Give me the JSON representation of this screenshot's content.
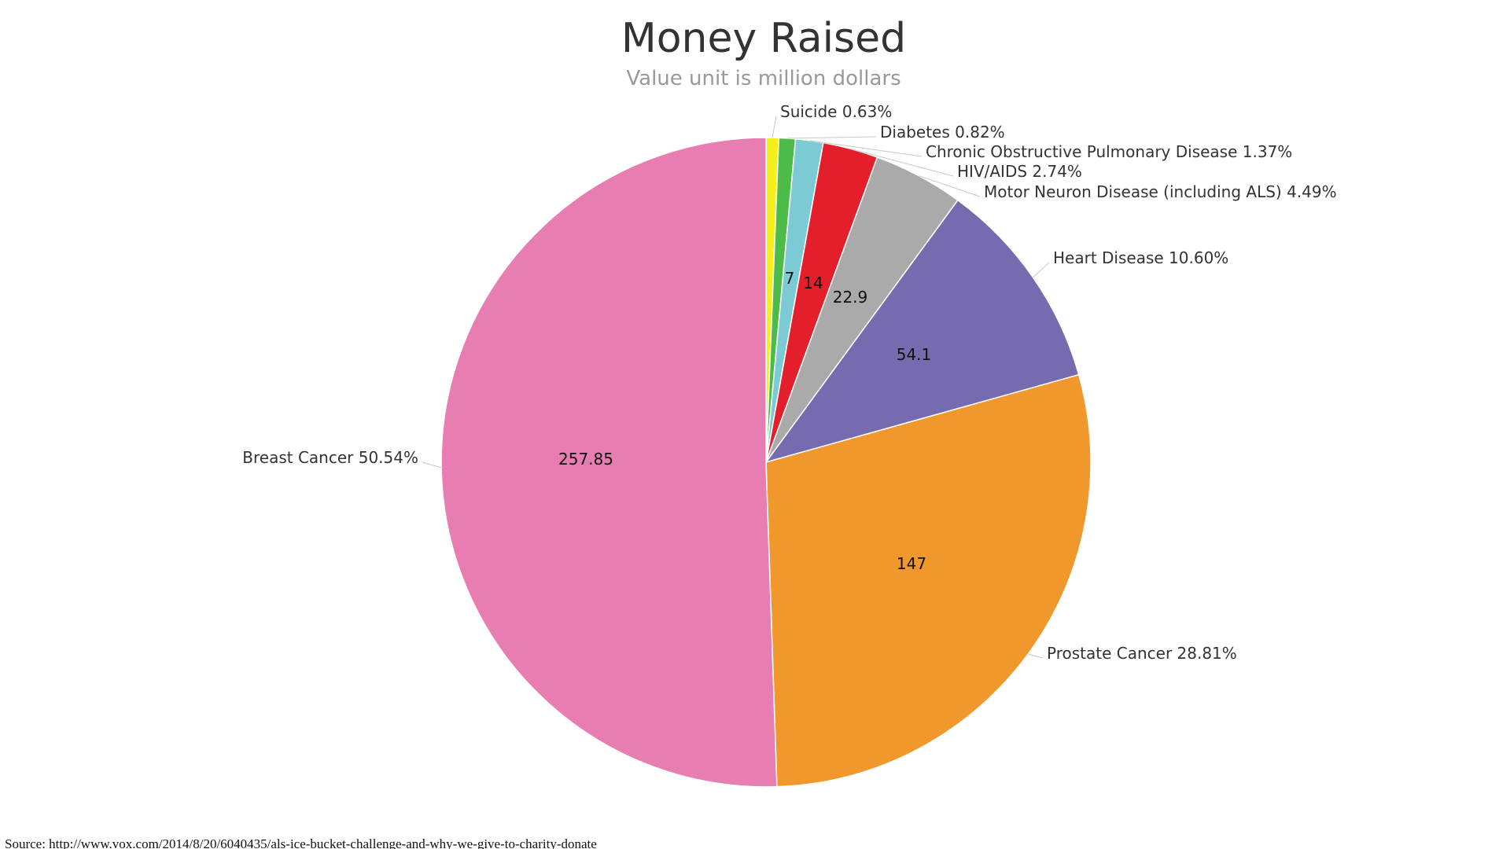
{
  "chart_data": {
    "type": "pie",
    "title": "Money Raised",
    "subtitle": "Value unit is million dollars",
    "start_angle_deg": 0,
    "direction": "clockwise",
    "slices": [
      {
        "name": "Suicide",
        "value": 3.2,
        "percent_label": "0.63%",
        "value_label": "",
        "color": "#f5f01b"
      },
      {
        "name": "Diabetes",
        "value": 4.2,
        "percent_label": "0.82%",
        "value_label": "",
        "color": "#4dbb47"
      },
      {
        "name": "Chronic Obstructive Pulmonary Disease",
        "value": 7,
        "percent_label": "1.37%",
        "value_label": "7",
        "color": "#7ccad3"
      },
      {
        "name": "HIV/AIDS",
        "value": 14,
        "percent_label": "2.74%",
        "value_label": "14",
        "color": "#e31f2c"
      },
      {
        "name": "Motor Neuron Disease (including ALS)",
        "value": 22.9,
        "percent_label": "4.49%",
        "value_label": "22.9",
        "color": "#aaaaaa"
      },
      {
        "name": "Heart Disease",
        "value": 54.1,
        "percent_label": "10.60%",
        "value_label": "54.1",
        "color": "#776bb0"
      },
      {
        "name": "Prostate Cancer",
        "value": 147,
        "percent_label": "28.81%",
        "value_label": "147",
        "color": "#f0982c"
      },
      {
        "name": "Breast Cancer",
        "value": 257.85,
        "percent_label": "50.54%",
        "value_label": "257.85",
        "color": "#e87db2"
      }
    ]
  },
  "source": "Source: http://www.vox.com/2014/8/20/6040435/als-ice-bucket-challenge-and-why-we-give-to-charity-donate"
}
